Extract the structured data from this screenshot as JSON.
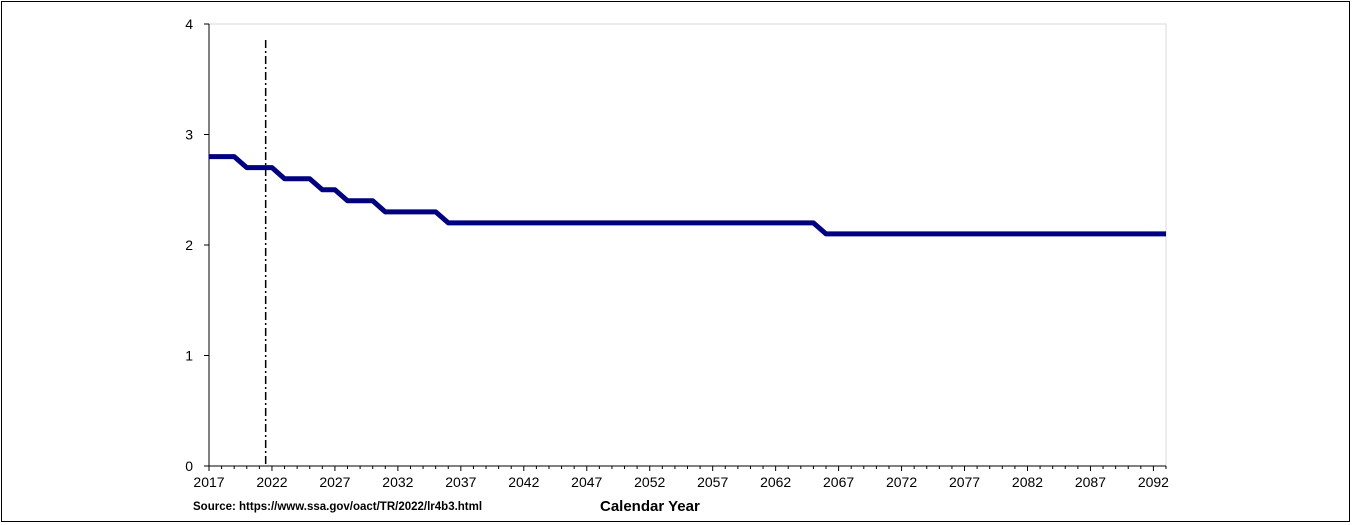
{
  "chart_data": {
    "type": "line",
    "title": "",
    "xlabel": "Calendar Year",
    "ylabel": "",
    "xlim": [
      2017,
      2093
    ],
    "ylim": [
      0,
      4
    ],
    "yticks": [
      0,
      1,
      2,
      3,
      4
    ],
    "xticks": [
      2017,
      2022,
      2027,
      2032,
      2037,
      2042,
      2047,
      2052,
      2057,
      2062,
      2067,
      2072,
      2077,
      2082,
      2087,
      2092
    ],
    "grid": false,
    "legend": "none",
    "reference_line_x": 2021.5,
    "series": [
      {
        "color": "#000080",
        "x": [
          2017,
          2018,
          2019,
          2020,
          2021,
          2022,
          2023,
          2024,
          2025,
          2026,
          2027,
          2028,
          2029,
          2030,
          2031,
          2032,
          2033,
          2034,
          2035,
          2036,
          2037,
          2038,
          2039,
          2040,
          2045,
          2050,
          2055,
          2060,
          2064,
          2065,
          2066,
          2070,
          2075,
          2080,
          2085,
          2090,
          2093
        ],
        "y": [
          2.8,
          2.8,
          2.8,
          2.7,
          2.7,
          2.7,
          2.6,
          2.6,
          2.6,
          2.5,
          2.5,
          2.4,
          2.4,
          2.4,
          2.3,
          2.3,
          2.3,
          2.3,
          2.3,
          2.2,
          2.2,
          2.2,
          2.2,
          2.2,
          2.2,
          2.2,
          2.2,
          2.2,
          2.2,
          2.2,
          2.1,
          2.1,
          2.1,
          2.1,
          2.1,
          2.1,
          2.1
        ]
      }
    ]
  },
  "source_note": "Source: https://www.ssa.gov/oact/TR/2022/lr4b3.html"
}
